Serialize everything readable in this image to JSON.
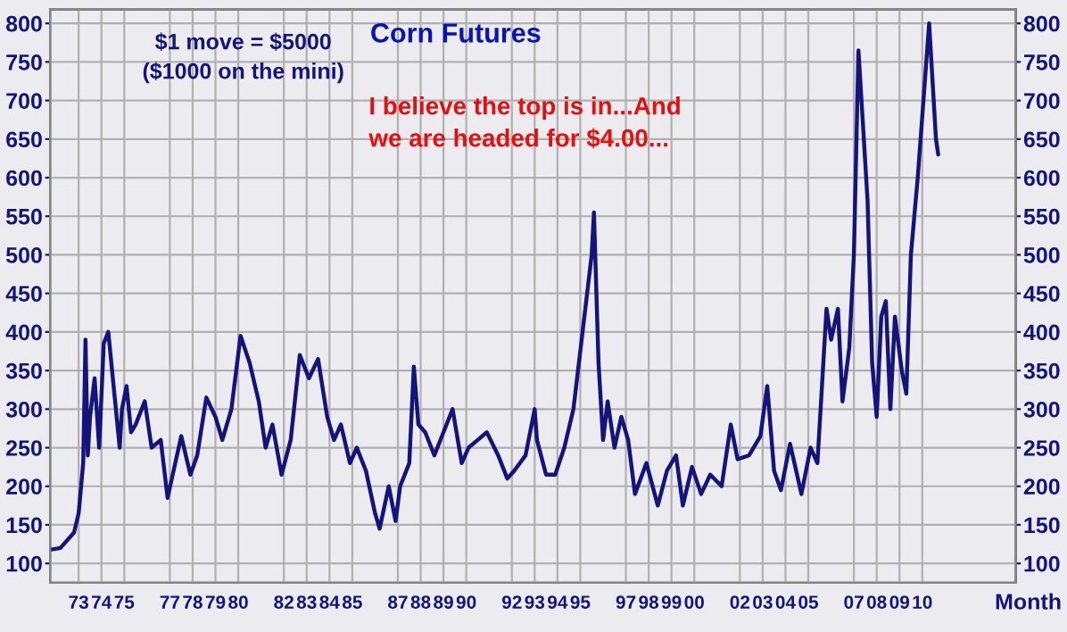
{
  "chart_data": {
    "type": "line",
    "title": "Corn Futures",
    "xlabel": "Month",
    "annotations": [
      "$1 move = $5000\n($1000 on the mini)",
      "I believe the top is in...And\nwe are headed for $4.00..."
    ],
    "series": [
      {
        "color": "#14147a",
        "x": [
          1971.8,
          1972.2,
          1972.8,
          1973.0,
          1973.2,
          1973.3,
          1973.4,
          1973.5,
          1973.7,
          1973.9,
          1974.1,
          1974.3,
          1974.5,
          1974.8,
          1974.9,
          1975.1,
          1975.3,
          1975.5,
          1975.9,
          1976.2,
          1976.6,
          1976.9,
          1977.2,
          1977.5,
          1977.9,
          1978.2,
          1978.6,
          1979.0,
          1979.3,
          1979.7,
          1980.1,
          1980.5,
          1980.9,
          1981.2,
          1981.5,
          1981.9,
          1982.3,
          1982.7,
          1983.1,
          1983.5,
          1983.9,
          1984.2,
          1984.5,
          1984.9,
          1985.2,
          1985.6,
          1986.0,
          1986.2,
          1986.6,
          1986.9,
          1987.1,
          1987.5,
          1987.7,
          1987.9,
          1988.2,
          1988.6,
          1989.0,
          1989.4,
          1989.8,
          1990.1,
          1990.5,
          1990.9,
          1991.4,
          1991.8,
          1992.1,
          1992.6,
          1993.0,
          1993.1,
          1993.5,
          1993.9,
          1994.3,
          1994.7,
          1995.1,
          1995.5,
          1995.6,
          1995.8,
          1996.0,
          1996.2,
          1996.5,
          1996.8,
          1997.1,
          1997.4,
          1997.9,
          1998.4,
          1998.8,
          1999.2,
          1999.5,
          1999.9,
          2000.3,
          2000.7,
          2001.2,
          2001.6,
          2001.9,
          2002.4,
          2002.9,
          2003.2,
          2003.5,
          2003.8,
          2004.2,
          2004.7,
          2005.1,
          2005.4,
          2005.8,
          2006.0,
          2006.3,
          2006.5,
          2006.8,
          2007.0,
          2007.2,
          2007.6,
          2007.8,
          2008.0,
          2008.2,
          2008.4,
          2008.6,
          2008.8,
          2009.1,
          2009.3,
          2009.5,
          2009.8,
          2010.1,
          2010.3,
          2010.6,
          2010.7
        ],
        "values": [
          118,
          120,
          140,
          165,
          230,
          390,
          240,
          290,
          340,
          250,
          385,
          400,
          340,
          250,
          300,
          330,
          270,
          280,
          310,
          250,
          260,
          185,
          225,
          265,
          215,
          240,
          315,
          290,
          260,
          300,
          395,
          360,
          310,
          250,
          280,
          215,
          260,
          370,
          340,
          365,
          290,
          260,
          280,
          230,
          250,
          220,
          165,
          145,
          200,
          155,
          200,
          230,
          355,
          280,
          270,
          240,
          270,
          300,
          230,
          250,
          260,
          270,
          240,
          210,
          220,
          240,
          300,
          260,
          215,
          215,
          250,
          300,
          400,
          500,
          555,
          360,
          260,
          310,
          250,
          290,
          260,
          190,
          230,
          175,
          220,
          240,
          175,
          225,
          190,
          215,
          200,
          280,
          235,
          240,
          265,
          330,
          220,
          195,
          255,
          190,
          250,
          230,
          430,
          390,
          430,
          310,
          380,
          500,
          765,
          570,
          360,
          290,
          420,
          440,
          300,
          420,
          350,
          320,
          500,
          600,
          720,
          800,
          650,
          630
        ]
      }
    ],
    "xlim": [
      1971.75,
      2014.1
    ],
    "xticks": [
      {
        "value": 1973,
        "label": "73"
      },
      {
        "value": 1974,
        "label": "74"
      },
      {
        "value": 1975,
        "label": "75"
      },
      {
        "value": 1977,
        "label": "77"
      },
      {
        "value": 1978,
        "label": "78"
      },
      {
        "value": 1979,
        "label": "79"
      },
      {
        "value": 1980,
        "label": "80"
      },
      {
        "value": 1982,
        "label": "82"
      },
      {
        "value": 1983,
        "label": "83"
      },
      {
        "value": 1984,
        "label": "84"
      },
      {
        "value": 1985,
        "label": "85"
      },
      {
        "value": 1987,
        "label": "87"
      },
      {
        "value": 1988,
        "label": "88"
      },
      {
        "value": 1989,
        "label": "89"
      },
      {
        "value": 1990,
        "label": "90"
      },
      {
        "value": 1992,
        "label": "92"
      },
      {
        "value": 1993,
        "label": "93"
      },
      {
        "value": 1994,
        "label": "94"
      },
      {
        "value": 1995,
        "label": "95"
      },
      {
        "value": 1997,
        "label": "97"
      },
      {
        "value": 1998,
        "label": "98"
      },
      {
        "value": 1999,
        "label": "99"
      },
      {
        "value": 2000,
        "label": "00"
      },
      {
        "value": 2002,
        "label": "02"
      },
      {
        "value": 2003,
        "label": "03"
      },
      {
        "value": 2004,
        "label": "04"
      },
      {
        "value": 2005,
        "label": "05"
      },
      {
        "value": 2007,
        "label": "07"
      },
      {
        "value": 2008,
        "label": "08"
      },
      {
        "value": 2009,
        "label": "09"
      },
      {
        "value": 2010,
        "label": "10"
      }
    ],
    "ylim": [
      75,
      818
    ],
    "yticks": [
      100,
      150,
      200,
      250,
      300,
      350,
      400,
      450,
      500,
      550,
      600,
      650,
      700,
      750,
      800
    ],
    "y2lim": [
      75,
      818
    ],
    "y2ticks": [
      100,
      150,
      200,
      250,
      300,
      350,
      400,
      450,
      500,
      550,
      600,
      650,
      700,
      750,
      800
    ],
    "grid": true,
    "legend": false,
    "marker": "none",
    "line_style": "solid"
  }
}
